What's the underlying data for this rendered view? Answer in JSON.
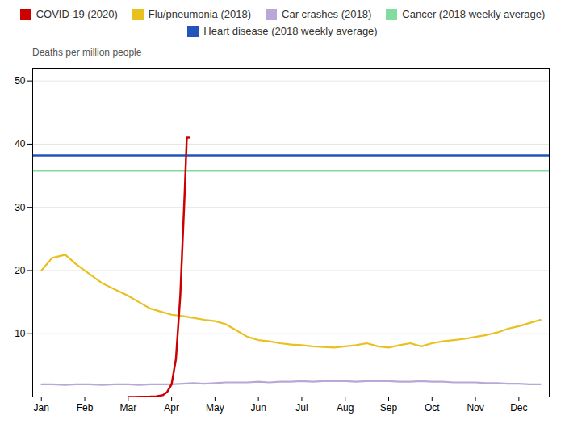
{
  "chart_data": {
    "type": "line",
    "y_label": "Deaths per million people",
    "xlim": [
      -0.2,
      11.7
    ],
    "xticks": [
      {
        "value": 0,
        "label": "Jan"
      },
      {
        "value": 1,
        "label": "Feb"
      },
      {
        "value": 2,
        "label": "Mar"
      },
      {
        "value": 3,
        "label": "Apr"
      },
      {
        "value": 4,
        "label": "May"
      },
      {
        "value": 5,
        "label": "Jun"
      },
      {
        "value": 6,
        "label": "Jul"
      },
      {
        "value": 7,
        "label": "Aug"
      },
      {
        "value": 8,
        "label": "Sep"
      },
      {
        "value": 9,
        "label": "Oct"
      },
      {
        "value": 10,
        "label": "Nov"
      },
      {
        "value": 11,
        "label": "Dec"
      }
    ],
    "ylim": [
      0,
      52
    ],
    "yticks": [
      10,
      20,
      30,
      40,
      50
    ],
    "grid": true,
    "legend": "top",
    "series": [
      {
        "name": "COVID-19 (2020)",
        "color": "#cc0000",
        "type": "line",
        "x": [
          2.0,
          2.15,
          2.3,
          2.5,
          2.65,
          2.8,
          2.9,
          3.0,
          3.1,
          3.2,
          3.3,
          3.35,
          3.4
        ],
        "values": [
          0.0,
          0.0,
          0.02,
          0.05,
          0.1,
          0.3,
          0.8,
          2.0,
          6.0,
          16.0,
          32.0,
          41.0,
          41.0
        ]
      },
      {
        "name": "Flu/pneumonia (2018)",
        "color": "#e8c020",
        "type": "line",
        "x": [
          0.0,
          0.25,
          0.55,
          0.8,
          1.1,
          1.4,
          1.7,
          2.0,
          2.25,
          2.5,
          2.75,
          3.0,
          3.25,
          3.5,
          3.75,
          4.0,
          4.25,
          4.5,
          4.75,
          5.0,
          5.25,
          5.5,
          5.75,
          6.0,
          6.25,
          6.5,
          6.75,
          7.0,
          7.25,
          7.5,
          7.75,
          8.0,
          8.25,
          8.5,
          8.75,
          9.0,
          9.25,
          9.5,
          9.75,
          10.0,
          10.25,
          10.5,
          10.75,
          11.0,
          11.25,
          11.5
        ],
        "values": [
          20.0,
          22.0,
          22.5,
          21.0,
          19.5,
          18.0,
          17.0,
          16.0,
          15.0,
          14.0,
          13.5,
          13.0,
          12.8,
          12.5,
          12.2,
          12.0,
          11.5,
          10.5,
          9.5,
          9.0,
          8.8,
          8.5,
          8.3,
          8.2,
          8.0,
          7.9,
          7.8,
          8.0,
          8.2,
          8.5,
          8.0,
          7.8,
          8.2,
          8.5,
          8.0,
          8.5,
          8.8,
          9.0,
          9.2,
          9.5,
          9.8,
          10.2,
          10.8,
          11.2,
          11.7,
          12.2
        ]
      },
      {
        "name": "Car crashes (2018)",
        "color": "#b8a8d8",
        "type": "line",
        "x": [
          0.0,
          0.25,
          0.55,
          0.8,
          1.1,
          1.4,
          1.7,
          2.0,
          2.25,
          2.5,
          2.75,
          3.0,
          3.25,
          3.5,
          3.75,
          4.0,
          4.25,
          4.5,
          4.75,
          5.0,
          5.25,
          5.5,
          5.75,
          6.0,
          6.25,
          6.5,
          6.75,
          7.0,
          7.25,
          7.5,
          7.75,
          8.0,
          8.25,
          8.5,
          8.75,
          9.0,
          9.25,
          9.5,
          9.75,
          10.0,
          10.25,
          10.5,
          10.75,
          11.0,
          11.25,
          11.5
        ],
        "values": [
          2.0,
          2.0,
          1.9,
          2.0,
          2.0,
          1.9,
          2.0,
          2.0,
          1.9,
          2.0,
          2.0,
          2.0,
          2.1,
          2.2,
          2.1,
          2.2,
          2.3,
          2.3,
          2.3,
          2.4,
          2.3,
          2.4,
          2.4,
          2.5,
          2.4,
          2.5,
          2.5,
          2.5,
          2.4,
          2.5,
          2.5,
          2.5,
          2.4,
          2.4,
          2.5,
          2.4,
          2.4,
          2.3,
          2.3,
          2.3,
          2.2,
          2.2,
          2.1,
          2.1,
          2.0,
          2.0
        ]
      },
      {
        "name": "Cancer (2018 weekly average)",
        "color": "#80dca0",
        "type": "hline",
        "values": [
          35.8
        ]
      },
      {
        "name": "Heart disease (2018 weekly average)",
        "color": "#2255bb",
        "type": "hline",
        "values": [
          38.2
        ]
      }
    ]
  }
}
